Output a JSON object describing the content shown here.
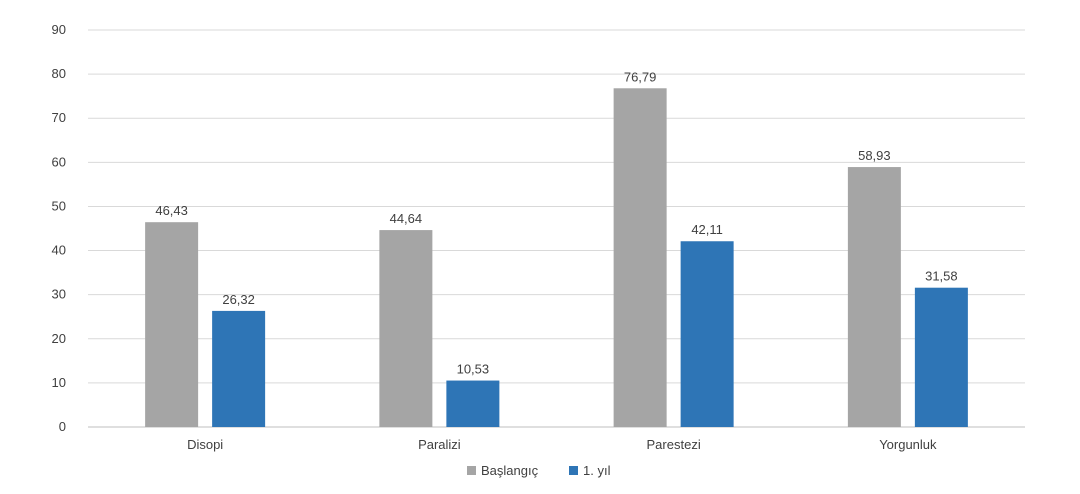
{
  "chart_data": {
    "type": "bar",
    "categories": [
      "Disopi",
      "Paralizi",
      "Parestezi",
      "Yorgunluk"
    ],
    "series": [
      {
        "name": "Başlangıç",
        "values": [
          46.43,
          44.64,
          76.79,
          58.93
        ],
        "color": "#a5a5a5",
        "labels": [
          "46,43",
          "44,64",
          "76,79",
          "58,93"
        ]
      },
      {
        "name": "1. yıl",
        "values": [
          26.32,
          10.53,
          42.11,
          31.58
        ],
        "color": "#2e75b6",
        "labels": [
          "26,32",
          "10,53",
          "42,11",
          "31,58"
        ]
      }
    ],
    "y_ticks": [
      "0",
      "10",
      "20",
      "30",
      "40",
      "50",
      "60",
      "70",
      "80",
      "90"
    ],
    "ylim": [
      0,
      90
    ],
    "grid": true,
    "legend_position": "bottom"
  }
}
